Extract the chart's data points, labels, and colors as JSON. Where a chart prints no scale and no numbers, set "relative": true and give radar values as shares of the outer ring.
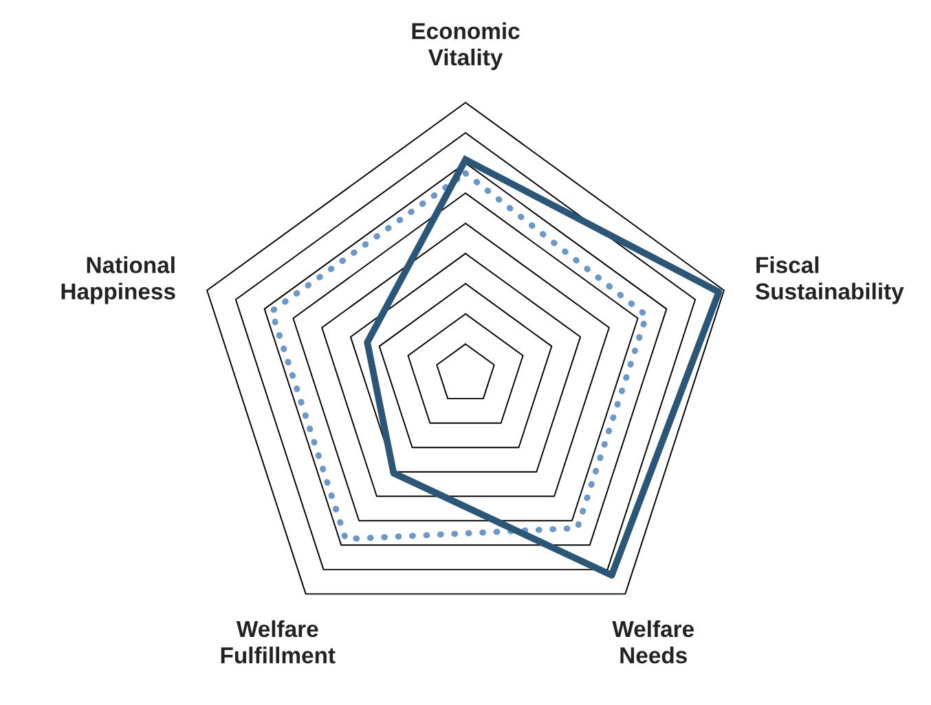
{
  "chart_data": {
    "type": "radar",
    "relative": true,
    "grid": true,
    "categories": [
      "Economic\nVitality",
      "Fiscal\nSustainability",
      "Welfare\nNeeds",
      "Welfare\nFulfillment",
      "National\nHappiness"
    ],
    "series": [
      {
        "color": "#6b98c6",
        "line_style": "dotted",
        "values": [
          0.74,
          0.7,
          0.7,
          0.75,
          0.75
        ]
      },
      {
        "color": "#2b5677",
        "line_style": "solid",
        "values": [
          0.79,
          0.98,
          0.915,
          0.45,
          0.38
        ]
      }
    ]
  }
}
